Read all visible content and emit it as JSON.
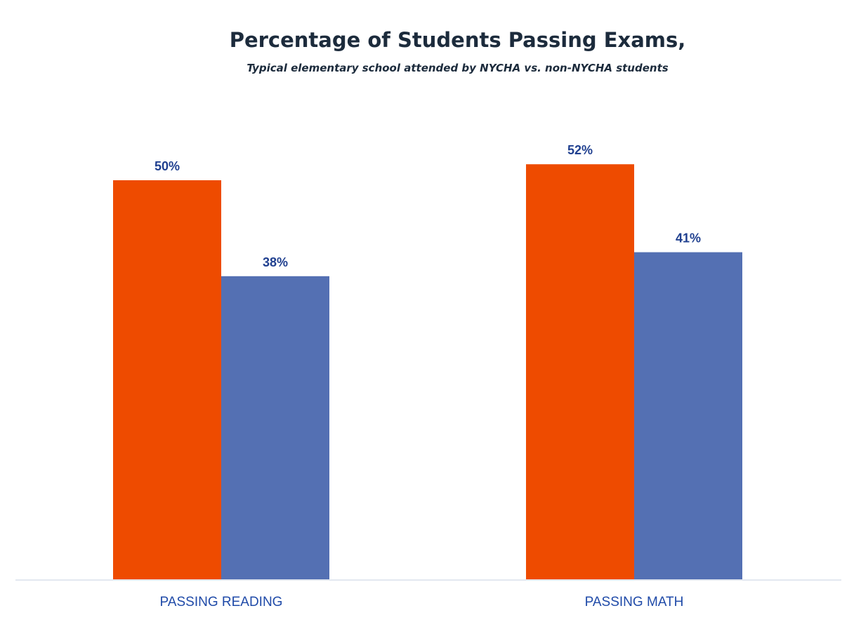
{
  "chart_data": {
    "type": "bar",
    "title": "Percentage of Students Passing Exams,",
    "subtitle": "Typical elementary school attended by NYCHA vs. non-NYCHA students",
    "categories": [
      "PASSING READING",
      "PASSING MATH"
    ],
    "series": [
      {
        "values": [
          50,
          52
        ],
        "labels": [
          "50%",
          "52%"
        ],
        "color": "#ee4b00"
      },
      {
        "values": [
          38,
          41
        ],
        "labels": [
          "38%",
          "41%"
        ],
        "color": "#5470b3"
      }
    ],
    "xlabel": "",
    "ylabel": "",
    "ylim": [
      0,
      60
    ],
    "grid": false,
    "legend": "none",
    "axis_color": "#e3e8f0"
  }
}
